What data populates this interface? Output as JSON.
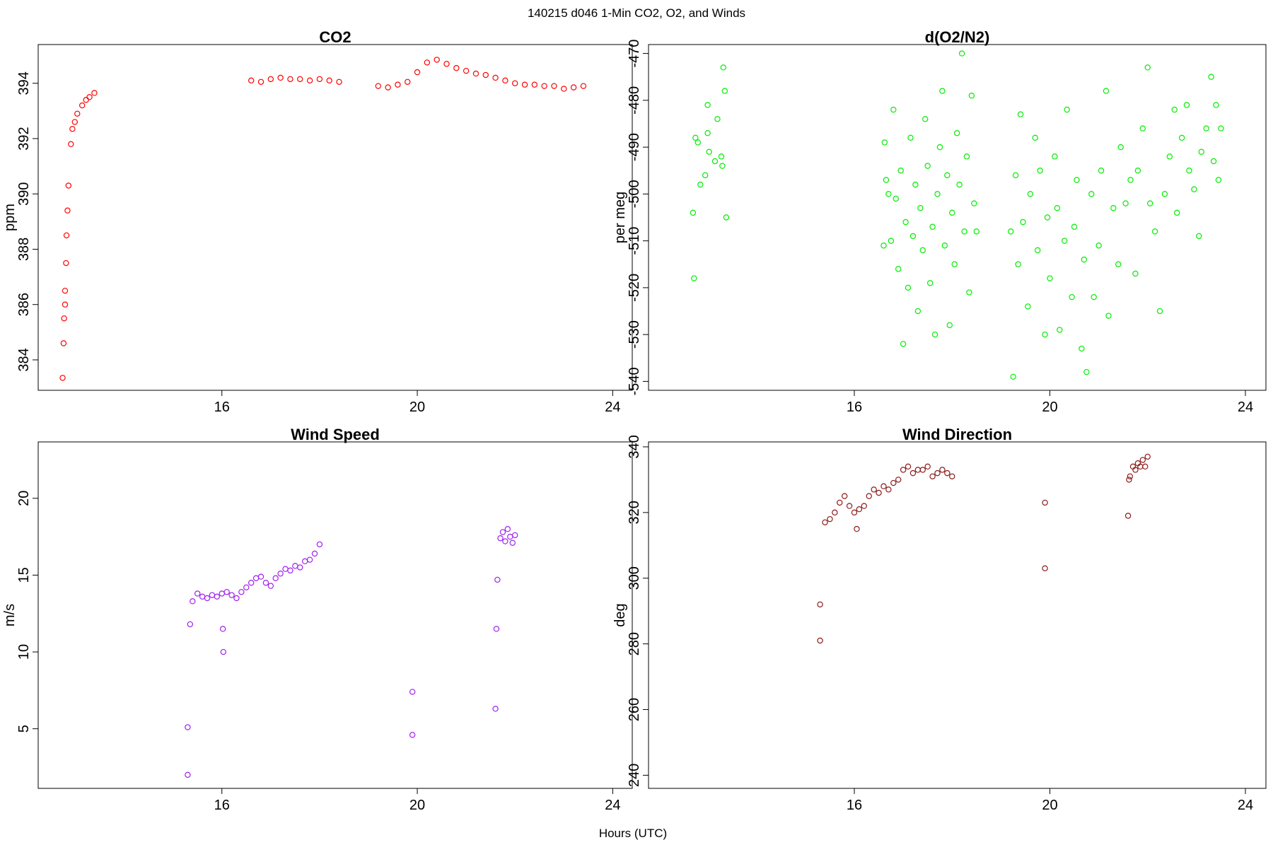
{
  "title": "140215   d046   1-Min CO2, O2, and Winds",
  "x_label": "Hours (UTC)",
  "chart_data": [
    {
      "type": "scatter",
      "title": "CO2",
      "y_label": "ppm",
      "color": "#ff0000",
      "x": [
        12.74,
        12.76,
        12.77,
        12.79,
        12.79,
        12.81,
        12.82,
        12.84,
        12.86,
        12.91,
        12.94,
        12.99,
        13.04,
        13.14,
        13.22,
        13.29,
        13.39,
        16.6,
        16.8,
        17.0,
        17.2,
        17.4,
        17.6,
        17.8,
        18.0,
        18.2,
        18.4,
        19.2,
        19.4,
        19.6,
        19.8,
        20.0,
        20.2,
        20.4,
        20.6,
        20.8,
        21.0,
        21.2,
        21.4,
        21.6,
        21.8,
        22.0,
        22.2,
        22.4,
        22.6,
        22.8,
        23.0,
        23.2,
        23.4
      ],
      "y": [
        383.35,
        384.6,
        385.5,
        386.0,
        386.5,
        387.5,
        388.5,
        389.4,
        390.3,
        391.8,
        392.35,
        392.6,
        392.9,
        393.2,
        393.4,
        393.5,
        393.65,
        394.1,
        394.05,
        394.15,
        394.2,
        394.15,
        394.15,
        394.1,
        394.15,
        394.1,
        394.05,
        393.9,
        393.85,
        393.95,
        394.05,
        394.4,
        394.75,
        394.85,
        394.7,
        394.55,
        394.45,
        394.35,
        394.3,
        394.2,
        394.1,
        394.0,
        393.95,
        393.95,
        393.9,
        393.9,
        393.8,
        393.85,
        393.9
      ],
      "xlim": [
        12.24,
        24.4
      ],
      "ylim": [
        382.9,
        395.4
      ],
      "xticks": [
        16,
        20,
        24
      ],
      "yticks": [
        384,
        386,
        388,
        390,
        392,
        394
      ]
    },
    {
      "type": "scatter",
      "title": "d(O2/N2)",
      "y_label": "per meg",
      "color": "#00ee00",
      "x": [
        12.7,
        12.72,
        12.75,
        12.8,
        12.85,
        12.95,
        13.0,
        13.03,
        13.0,
        13.15,
        13.2,
        13.28,
        13.32,
        13.35,
        13.38,
        13.3,
        16.6,
        16.62,
        16.65,
        16.7,
        16.75,
        16.8,
        16.85,
        16.9,
        16.95,
        17.0,
        17.05,
        17.1,
        17.15,
        17.2,
        17.25,
        17.3,
        17.35,
        17.4,
        17.45,
        17.5,
        17.55,
        17.6,
        17.65,
        17.7,
        17.75,
        17.8,
        17.85,
        17.9,
        17.95,
        18.0,
        18.05,
        18.1,
        18.15,
        18.2,
        18.25,
        18.3,
        18.35,
        18.4,
        18.45,
        18.5,
        19.2,
        19.25,
        19.3,
        19.35,
        19.4,
        19.45,
        19.55,
        19.6,
        19.7,
        19.75,
        19.8,
        19.9,
        19.95,
        20.0,
        20.1,
        20.15,
        20.2,
        20.3,
        20.35,
        20.45,
        20.5,
        20.55,
        20.65,
        20.7,
        20.75,
        20.85,
        20.9,
        21.0,
        21.05,
        21.15,
        21.2,
        21.3,
        21.4,
        21.45,
        21.55,
        21.65,
        21.75,
        21.8,
        21.9,
        22.0,
        22.05,
        22.15,
        22.25,
        22.35,
        22.45,
        22.55,
        22.6,
        22.7,
        22.8,
        22.85,
        22.95,
        23.05,
        23.1,
        23.2,
        23.3,
        23.35,
        23.4,
        23.45,
        23.5
      ],
      "y": [
        -504,
        -518,
        -488,
        -489,
        -498,
        -496,
        -481,
        -491,
        -487,
        -493,
        -484,
        -492,
        -473,
        -478,
        -505,
        -494,
        -511,
        -489,
        -497,
        -500,
        -510,
        -482,
        -501,
        -516,
        -495,
        -532,
        -506,
        -520,
        -488,
        -509,
        -498,
        -525,
        -503,
        -512,
        -484,
        -494,
        -519,
        -507,
        -530,
        -500,
        -490,
        -478,
        -511,
        -496,
        -528,
        -504,
        -515,
        -487,
        -498,
        -470,
        -508,
        -492,
        -521,
        -479,
        -502,
        -508,
        -508,
        -539,
        -496,
        -515,
        -483,
        -506,
        -524,
        -500,
        -488,
        -512,
        -495,
        -530,
        -505,
        -518,
        -492,
        -503,
        -529,
        -510,
        -482,
        -522,
        -507,
        -497,
        -533,
        -514,
        -538,
        -500,
        -522,
        -511,
        -495,
        -478,
        -526,
        -503,
        -515,
        -490,
        -502,
        -497,
        -517,
        -495,
        -486,
        -473,
        -502,
        -508,
        -525,
        -500,
        -492,
        -482,
        -504,
        -488,
        -481,
        -495,
        -499,
        -509,
        -491,
        -486,
        -475,
        -493,
        -481,
        -497,
        -486
      ],
      "xlim": [
        11.79,
        24.42
      ],
      "ylim": [
        -541.9,
        -468.1
      ],
      "xticks": [
        16,
        20,
        24
      ],
      "yticks": [
        -540,
        -530,
        -520,
        -510,
        -500,
        -490,
        -480,
        -470
      ]
    },
    {
      "type": "scatter",
      "title": "Wind Speed",
      "y_label": "m/s",
      "color": "#a020f0",
      "x": [
        15.3,
        15.3,
        15.35,
        15.4,
        15.5,
        15.6,
        15.7,
        15.8,
        15.9,
        16.0,
        16.1,
        16.2,
        16.3,
        16.4,
        16.5,
        16.6,
        16.7,
        16.8,
        16.9,
        17.0,
        17.1,
        17.2,
        17.3,
        17.4,
        17.5,
        17.6,
        17.7,
        17.8,
        17.9,
        18.0,
        16.02,
        16.03,
        19.9,
        19.9,
        21.6,
        21.62,
        21.64,
        21.7,
        21.75,
        21.8,
        21.85,
        21.9,
        21.95,
        22.0
      ],
      "y": [
        2.0,
        5.1,
        11.8,
        13.3,
        13.8,
        13.6,
        13.5,
        13.7,
        13.6,
        13.8,
        13.9,
        13.7,
        13.5,
        13.9,
        14.2,
        14.5,
        14.8,
        14.9,
        14.5,
        14.3,
        14.8,
        15.1,
        15.4,
        15.3,
        15.6,
        15.5,
        15.9,
        16.0,
        16.4,
        17.0,
        11.5,
        10.0,
        7.4,
        4.6,
        6.3,
        11.5,
        14.7,
        17.4,
        17.8,
        17.2,
        18.0,
        17.5,
        17.1,
        17.6
      ],
      "xlim": [
        12.24,
        24.4
      ],
      "ylim": [
        1.12,
        23.67
      ],
      "xticks": [
        16,
        20,
        24
      ],
      "yticks": [
        5,
        10,
        15,
        20
      ]
    },
    {
      "type": "scatter",
      "title": "Wind Direction",
      "y_label": "deg",
      "color": "#8b1a1a",
      "x": [
        15.3,
        15.3,
        15.4,
        15.5,
        15.6,
        15.7,
        15.8,
        15.9,
        16.0,
        16.1,
        16.2,
        16.3,
        16.4,
        16.5,
        16.6,
        16.7,
        16.8,
        16.9,
        17.0,
        17.1,
        17.2,
        17.3,
        17.4,
        17.5,
        17.6,
        17.7,
        17.8,
        17.9,
        18.0,
        16.05,
        19.9,
        19.9,
        21.6,
        21.62,
        21.64,
        21.7,
        21.75,
        21.8,
        21.85,
        21.9,
        21.95,
        22.0
      ],
      "y": [
        281,
        292,
        317,
        318,
        320,
        323,
        325,
        322,
        320,
        321,
        322,
        325,
        327,
        326,
        328,
        327,
        329,
        330,
        333,
        334,
        332,
        333,
        333,
        334,
        331,
        332,
        333,
        332,
        331,
        315,
        303,
        323,
        319,
        330,
        331,
        334,
        333,
        335,
        334,
        336,
        334,
        337
      ],
      "xlim": [
        11.79,
        24.42
      ],
      "ylim": [
        236.0,
        341.5
      ],
      "xticks": [
        16,
        20,
        24
      ],
      "yticks": [
        240,
        260,
        280,
        300,
        320,
        340
      ]
    }
  ]
}
